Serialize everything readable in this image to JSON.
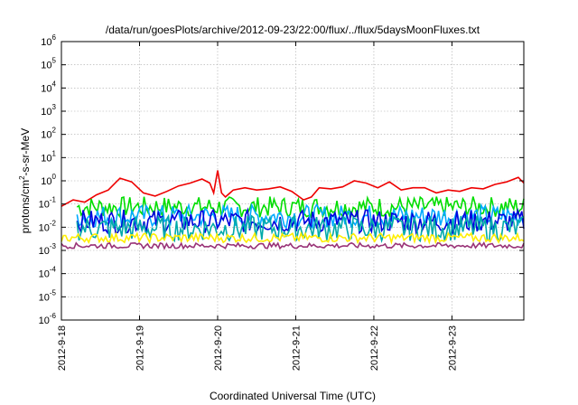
{
  "chart_data": {
    "type": "line",
    "title": "/data/run/goesPlots/archive/2012-09-23/22:00/flux/../flux/5daysMoonFluxes.txt",
    "xlabel": "Coordinated Universal Time (UTC)",
    "ylabel": {
      "base": "protons/cm",
      "sup": "2",
      "rest": "-s-sr-MeV"
    },
    "y_scale": "log",
    "ylim": [
      1e-06,
      1000000.0
    ],
    "xlim": [
      "2012-09-18 00:00",
      "2012-09-23 22:00"
    ],
    "grid": true,
    "legend": "none",
    "x_ticks": [
      "2012-9-18",
      "2012-9-19",
      "2012-9-20",
      "2012-9-21",
      "2012-9-22",
      "2012-9-23"
    ],
    "y_ticks": [
      {
        "base": "10",
        "exp": "-6"
      },
      {
        "base": "10",
        "exp": "-5"
      },
      {
        "base": "10",
        "exp": "-4"
      },
      {
        "base": "10",
        "exp": "-3"
      },
      {
        "base": "10",
        "exp": "-2"
      },
      {
        "base": "10",
        "exp": "-1"
      },
      {
        "base": "10",
        "exp": "0"
      },
      {
        "base": "10",
        "exp": "1"
      },
      {
        "base": "10",
        "exp": "2"
      },
      {
        "base": "10",
        "exp": "3"
      },
      {
        "base": "10",
        "exp": "4"
      },
      {
        "base": "10",
        "exp": "5"
      },
      {
        "base": "10",
        "exp": "6"
      }
    ],
    "series": [
      {
        "color": "#ee0000",
        "x_days": [
          0,
          0.15,
          0.3,
          0.45,
          0.6,
          0.75,
          0.9,
          1.05,
          1.2,
          1.35,
          1.5,
          1.65,
          1.8,
          1.9,
          1.95,
          2.0,
          2.05,
          2.1,
          2.2,
          2.35,
          2.5,
          2.65,
          2.8,
          2.95,
          3.1,
          3.2,
          3.3,
          3.45,
          3.6,
          3.75,
          3.9,
          4.05,
          4.2,
          4.35,
          4.5,
          4.65,
          4.8,
          4.95,
          5.1,
          5.25,
          5.4,
          5.55,
          5.7,
          5.85,
          5.92
        ],
        "values": [
          0.08,
          0.15,
          0.12,
          0.25,
          0.4,
          1.3,
          0.9,
          0.3,
          0.22,
          0.35,
          0.6,
          0.8,
          1.2,
          0.8,
          0.3,
          2.8,
          0.3,
          0.2,
          0.4,
          0.5,
          0.4,
          0.45,
          0.55,
          0.35,
          0.15,
          0.2,
          0.5,
          0.45,
          0.55,
          1.0,
          0.8,
          0.5,
          0.9,
          0.4,
          0.5,
          0.5,
          0.3,
          0.4,
          0.35,
          0.5,
          0.45,
          0.7,
          0.9,
          1.4,
          0.8
        ]
      },
      {
        "color": "#00dd00",
        "level": 0.075,
        "spread": 0.45,
        "x_days": [
          0.2,
          5.92
        ]
      },
      {
        "color": "#00aaff",
        "level": 0.03,
        "spread": 0.5,
        "x_days": [
          0.2,
          5.92
        ]
      },
      {
        "color": "#0000dd",
        "level": 0.018,
        "spread": 0.5,
        "x_days": [
          0.2,
          5.92
        ]
      },
      {
        "color": "#00aaaa",
        "level": 0.009,
        "spread": 0.55,
        "x_days": [
          0.2,
          5.92
        ]
      },
      {
        "color": "#ffee00",
        "level": 0.0035,
        "spread": 0.2,
        "x_days": [
          0,
          5.92
        ]
      },
      {
        "color": "#993377",
        "level": 0.0016,
        "spread": 0.12,
        "x_days": [
          0,
          5.92
        ]
      }
    ]
  }
}
